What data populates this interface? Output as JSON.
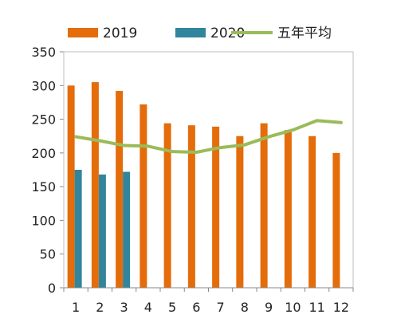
{
  "chart_data": {
    "type": "bar",
    "title": "",
    "xlabel": "",
    "ylabel": "",
    "ylim": [
      0,
      350
    ],
    "yticks": [
      0,
      50,
      100,
      150,
      200,
      250,
      300,
      350
    ],
    "grid": false,
    "legend_position": "top",
    "categories": [
      "1",
      "2",
      "3",
      "4",
      "5",
      "6",
      "7",
      "8",
      "9",
      "10",
      "11",
      "12"
    ],
    "series": [
      {
        "name": "2019",
        "type": "bar",
        "color": "#e46c0a",
        "values": [
          300,
          305,
          292,
          272,
          244,
          241,
          239,
          225,
          244,
          234,
          225,
          200
        ]
      },
      {
        "name": "2020",
        "type": "bar",
        "color": "#31859c",
        "values": [
          175,
          168,
          172,
          null,
          null,
          null,
          null,
          null,
          null,
          null,
          null,
          null
        ]
      },
      {
        "name": "五年平均",
        "type": "line",
        "color": "#9bbb59",
        "values": [
          224,
          218,
          211,
          210,
          202,
          201,
          208,
          212,
          224,
          234,
          248,
          245
        ]
      }
    ]
  }
}
